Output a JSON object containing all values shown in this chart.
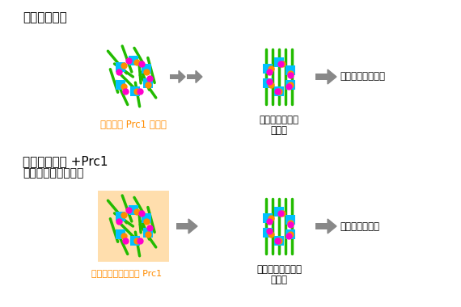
{
  "title_top": "減数第一分裂",
  "title_bottom1": "減数第一分裂 +Prc1",
  "title_bottom2": "（減数第二分裂様）",
  "label_top_left": "動原体に Prc1 が集積",
  "label_top_right1": "動原体依存的な",
  "label_top_right2": "二極化",
  "label_result_top": "正しい染色体分配",
  "label_bottom_left": "細胞質中に高濃度の Prc1",
  "label_bottom_right1": "動原体非依存的な",
  "label_bottom_right2": "二極化",
  "label_result_bottom": "染色体分配異常",
  "orange_color": "#FF8C00",
  "green_color": "#22BB00",
  "cyan_color": "#00BFFF",
  "magenta_color": "#FF00CC",
  "arrow_color": "#888888",
  "bg_color": "#FFDEAD",
  "text_color": "#000000",
  "orange_text_color": "#FF8C00"
}
